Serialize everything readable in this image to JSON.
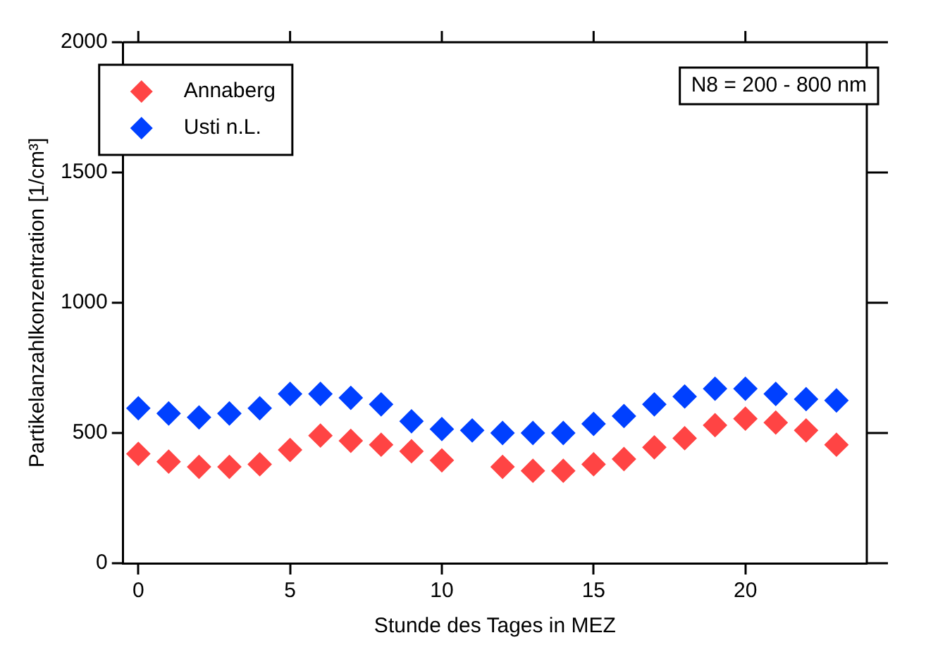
{
  "chart_data": {
    "type": "scatter",
    "xlabel": "Stunde des Tages in MEZ",
    "ylabel": "Partikelanzahlkonzentration [1/cm³]",
    "annotations": [
      "N8 = 200 - 800 nm"
    ],
    "x": [
      0,
      1,
      2,
      3,
      4,
      5,
      6,
      7,
      8,
      9,
      10,
      11,
      12,
      13,
      14,
      15,
      16,
      17,
      18,
      19,
      20,
      21,
      22,
      23
    ],
    "series": [
      {
        "name": "Annaberg",
        "color": "#ff4444",
        "values": [
          420,
          390,
          370,
          370,
          380,
          435,
          490,
          470,
          455,
          430,
          395,
          null,
          370,
          355,
          355,
          380,
          400,
          445,
          480,
          530,
          555,
          540,
          510,
          455
        ]
      },
      {
        "name": "Usti n.L.",
        "color": "#0040ff",
        "values": [
          595,
          575,
          560,
          575,
          595,
          650,
          650,
          635,
          610,
          545,
          515,
          510,
          500,
          500,
          500,
          535,
          565,
          610,
          640,
          670,
          670,
          650,
          630,
          625
        ]
      }
    ],
    "xlim": [
      -0.5,
      24
    ],
    "xticks": [
      0,
      5,
      10,
      15,
      20
    ],
    "ylim": [
      0,
      2000
    ],
    "yticks": [
      0,
      500,
      1000,
      1500,
      2000
    ],
    "grid": false,
    "legend": "top left",
    "marker": "diamond"
  }
}
